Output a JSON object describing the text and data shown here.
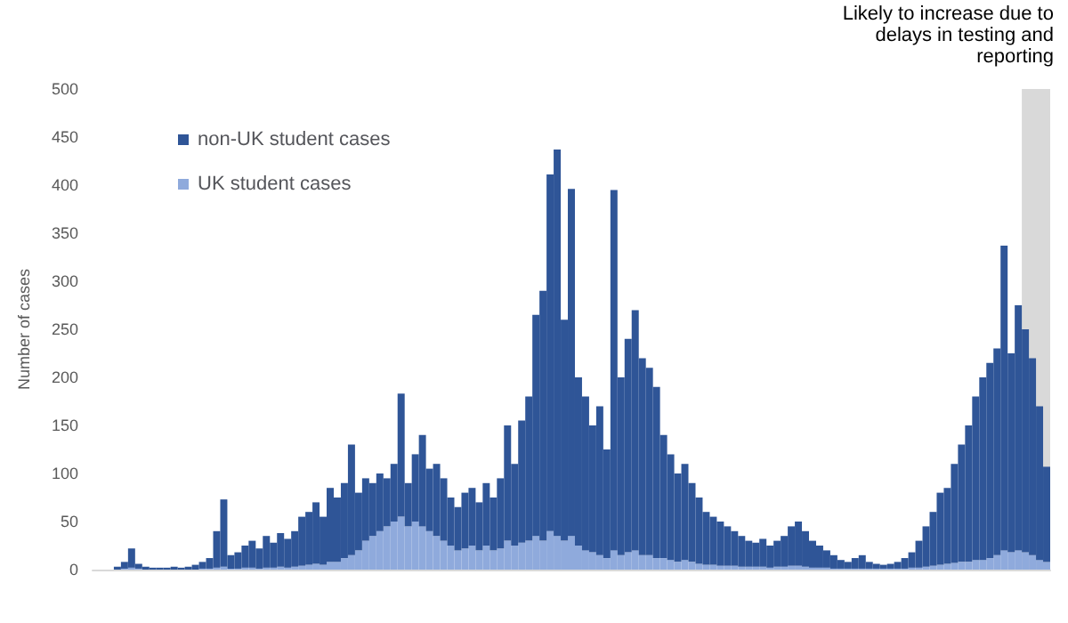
{
  "chart_data": {
    "type": "bar",
    "stacked": true,
    "ylabel": "Number of cases",
    "categories": [
      null,
      null,
      null,
      null,
      null,
      null,
      null,
      null,
      null,
      null,
      null,
      null,
      null,
      null,
      null,
      null,
      null,
      null,
      null,
      null,
      null,
      null,
      null,
      null,
      null,
      null,
      null,
      null,
      null,
      null,
      null,
      null,
      null,
      null,
      null,
      null,
      null,
      null,
      null,
      null,
      null,
      null,
      null,
      null,
      null,
      null,
      null,
      null,
      null,
      null,
      null,
      null,
      null,
      null,
      null,
      null,
      null,
      null,
      null,
      null,
      null,
      null,
      null,
      null,
      null,
      null,
      null,
      null,
      null,
      null,
      null,
      null,
      null,
      null,
      null,
      null,
      null,
      null,
      null,
      null,
      null,
      null,
      null,
      null,
      null,
      null,
      null,
      null,
      null,
      null,
      null,
      null,
      null,
      null,
      null,
      null,
      null,
      null,
      null,
      null,
      null,
      null,
      null,
      null,
      null,
      null,
      null,
      null,
      null,
      null,
      null,
      null,
      null,
      null,
      null,
      null,
      null,
      null,
      null,
      null,
      null,
      null,
      null,
      null,
      null,
      null,
      null,
      null,
      null,
      null,
      null,
      null,
      null,
      null,
      null
    ],
    "series": [
      {
        "name": "UK student cases",
        "color": "#8faadc",
        "values": [
          0,
          0,
          0,
          0,
          1,
          2,
          1,
          0,
          0,
          0,
          0,
          0,
          0,
          0,
          0,
          1,
          1,
          2,
          3,
          1,
          1,
          2,
          2,
          1,
          2,
          2,
          3,
          2,
          3,
          4,
          5,
          6,
          5,
          8,
          8,
          12,
          15,
          20,
          30,
          35,
          40,
          45,
          50,
          55,
          45,
          50,
          45,
          40,
          35,
          30,
          25,
          20,
          22,
          25,
          20,
          25,
          20,
          22,
          30,
          25,
          28,
          30,
          35,
          30,
          40,
          35,
          30,
          35,
          25,
          20,
          18,
          15,
          12,
          20,
          15,
          18,
          20,
          15,
          15,
          12,
          12,
          10,
          8,
          10,
          8,
          6,
          5,
          5,
          4,
          4,
          4,
          3,
          3,
          3,
          3,
          2,
          3,
          3,
          4,
          4,
          3,
          2,
          2,
          2,
          1,
          1,
          1,
          1,
          1,
          1,
          1,
          1,
          1,
          1,
          1,
          2,
          2,
          3,
          4,
          5,
          6,
          7,
          8,
          8,
          10,
          10,
          12,
          15,
          20,
          18,
          20,
          18,
          15,
          10,
          8
        ]
      },
      {
        "name": "non-UK student cases",
        "color": "#2f5597",
        "values": [
          0,
          0,
          0,
          3,
          7,
          20,
          5,
          3,
          2,
          2,
          2,
          3,
          2,
          3,
          5,
          7,
          11,
          38,
          70,
          14,
          17,
          23,
          28,
          21,
          33,
          26,
          35,
          30,
          37,
          51,
          55,
          64,
          50,
          77,
          67,
          78,
          115,
          60,
          65,
          55,
          60,
          50,
          60,
          128,
          45,
          70,
          95,
          65,
          75,
          65,
          50,
          45,
          58,
          60,
          50,
          65,
          55,
          73,
          120,
          85,
          127,
          150,
          230,
          260,
          371,
          402,
          230,
          361,
          175,
          160,
          132,
          155,
          113,
          375,
          185,
          222,
          250,
          205,
          195,
          178,
          128,
          110,
          92,
          100,
          82,
          69,
          55,
          50,
          46,
          41,
          36,
          32,
          27,
          25,
          29,
          23,
          27,
          32,
          41,
          46,
          37,
          28,
          23,
          18,
          14,
          9,
          7,
          11,
          14,
          7,
          5,
          4,
          5,
          7,
          11,
          16,
          28,
          42,
          56,
          75,
          79,
          103,
          122,
          142,
          170,
          190,
          203,
          215,
          317,
          207,
          255,
          232,
          205,
          160,
          99
        ]
      }
    ],
    "ylim": [
      0,
      500
    ],
    "yticks": [
      0,
      50,
      100,
      150,
      200,
      250,
      300,
      350,
      400,
      450,
      500
    ],
    "grid": false,
    "legend": "top left",
    "tick_labels": "y",
    "annotations": [
      "Likely to increase due to delays in testing and reporting"
    ]
  }
}
